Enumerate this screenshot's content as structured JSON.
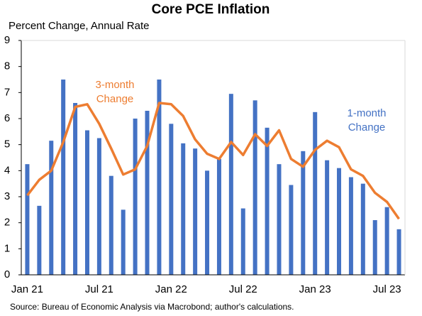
{
  "chart_data": {
    "type": "bar_line",
    "title": "Core PCE Inflation",
    "subtitle": "Percent Change, Annual Rate",
    "source": "Source: Bureau of Economic Analysis via Macrobond; author's calculations.",
    "categories": [
      "Jan 21",
      null,
      null,
      null,
      null,
      null,
      "Jul 21",
      null,
      null,
      null,
      null,
      null,
      "Jan 22",
      null,
      null,
      null,
      null,
      null,
      "Jul 22",
      null,
      null,
      null,
      null,
      null,
      "Jan 23",
      null,
      null,
      null,
      null,
      null,
      "Jul 23",
      null
    ],
    "series": [
      {
        "name": "1-month Change",
        "kind": "bar",
        "color": "#4472c4",
        "values": [
          4.25,
          2.65,
          5.15,
          7.5,
          6.6,
          5.55,
          5.25,
          3.8,
          2.5,
          6.0,
          6.3,
          7.5,
          5.8,
          5.05,
          4.85,
          4.0,
          4.45,
          6.95,
          2.55,
          6.7,
          5.65,
          4.25,
          3.45,
          4.75,
          6.25,
          4.4,
          4.1,
          3.75,
          3.5,
          2.1,
          2.6,
          1.75
        ]
      },
      {
        "name": "3-month Change",
        "kind": "line",
        "color": "#ed7d31",
        "values": [
          3.05,
          3.65,
          4.0,
          5.1,
          6.45,
          6.55,
          5.8,
          4.85,
          3.85,
          4.05,
          4.95,
          6.6,
          6.55,
          6.1,
          5.2,
          4.65,
          4.45,
          5.1,
          4.6,
          5.4,
          4.95,
          5.55,
          4.45,
          4.15,
          4.8,
          5.15,
          4.9,
          4.05,
          3.8,
          3.15,
          2.8,
          2.15
        ]
      }
    ],
    "annotations": [
      {
        "lines": [
          "3-month",
          "Change"
        ],
        "series": 1
      },
      {
        "lines": [
          "1-month",
          "Change"
        ],
        "series": 0
      }
    ],
    "ylim": [
      0,
      9
    ],
    "yticks": [
      0,
      1,
      2,
      3,
      4,
      5,
      6,
      7,
      8,
      9
    ],
    "grid": false
  }
}
